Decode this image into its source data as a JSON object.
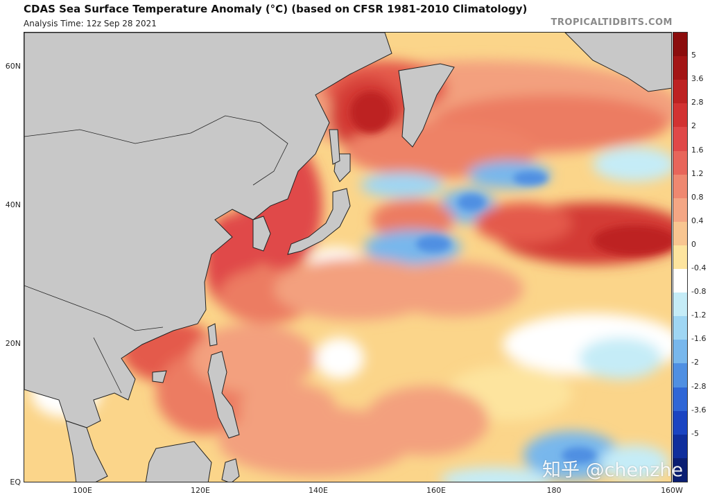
{
  "header": {
    "title": "CDAS Sea Surface Temperature Anomaly (°C) (based on CFSR 1981-2010 Climatology)",
    "subtitle": "Analysis Time: 12z Sep 28 2021",
    "credit": "TROPICALTIDBITS.COM"
  },
  "map": {
    "lat_labels": [
      {
        "lat": 60,
        "label": "60N"
      },
      {
        "lat": 40,
        "label": "40N"
      },
      {
        "lat": 20,
        "label": "20N"
      },
      {
        "lat": 0,
        "label": "EQ"
      }
    ],
    "lon_labels": [
      {
        "lon": 100,
        "label": "100E"
      },
      {
        "lon": 120,
        "label": "120E"
      },
      {
        "lon": 140,
        "label": "140E"
      },
      {
        "lon": 160,
        "label": "160E"
      },
      {
        "lon": 180,
        "label": "180"
      },
      {
        "lon": 200,
        "label": "160W"
      }
    ],
    "land_color": "#c8c8c8",
    "ocean_base_color": "#fbd58a"
  },
  "colorbar": {
    "labels": [
      "5",
      "3.6",
      "2.8",
      "2",
      "1.6",
      "1.2",
      "0.8",
      "0.4",
      "0",
      "-0.4",
      "-0.8",
      "-1.2",
      "-1.6",
      "-2",
      "-2.8",
      "-3.6",
      "-5"
    ],
    "colors": [
      "#8b0d0d",
      "#a31515",
      "#bd2222",
      "#d23232",
      "#e04848",
      "#e8655a",
      "#ef8870",
      "#f4a684",
      "#f8c590",
      "#fde49e",
      "#ffffff",
      "#c5ecf7",
      "#9fd6f3",
      "#78b7ec",
      "#4f8fe2",
      "#2f66d6",
      "#1a44c2",
      "#0f2e9c",
      "#0a1e72"
    ]
  },
  "watermark": "知乎 @chenzhe"
}
